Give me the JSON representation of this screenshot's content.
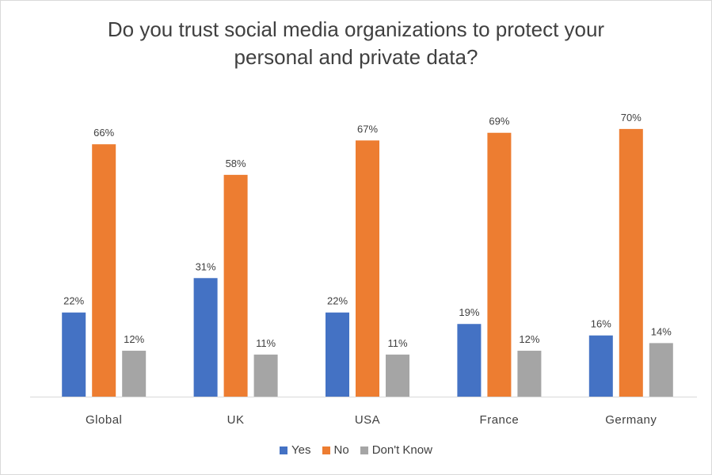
{
  "chart_data": {
    "type": "bar",
    "title_lines": [
      "Do you trust social media organizations to protect your",
      "personal and private data?"
    ],
    "categories": [
      "Global",
      "UK",
      "USA",
      "France",
      "Germany"
    ],
    "series": [
      {
        "name": "Yes",
        "color": "#4472C4",
        "values": [
          22,
          31,
          22,
          19,
          16
        ],
        "labels": [
          "22%",
          "31%",
          "22%",
          "19%",
          "16%"
        ]
      },
      {
        "name": "No",
        "color": "#ED7D31",
        "values": [
          66,
          58,
          67,
          69,
          70
        ],
        "labels": [
          "66%",
          "58%",
          "67%",
          "69%",
          "70%"
        ]
      },
      {
        "name": "Don't Know",
        "color": "#A5A5A5",
        "values": [
          12,
          11,
          11,
          12,
          14
        ],
        "labels": [
          "12%",
          "11%",
          "11%",
          "12%",
          "14%"
        ]
      }
    ],
    "ylim": [
      0,
      70
    ],
    "grid": false,
    "legend_position": "bottom"
  }
}
